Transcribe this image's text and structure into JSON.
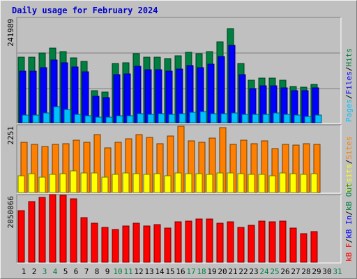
{
  "title": "Daily usage for February 2024",
  "colors": {
    "background": "#c0c0c0",
    "pages": "#00c0ff",
    "files": "#0000ff",
    "hits": "#008040",
    "visits": "#ffff00",
    "sites": "#ff8000",
    "kbytes": "#ff0000",
    "kb_in": "#0000ff",
    "kb_out": "#008040",
    "weekday_tick": "#000000",
    "weekend_tick": "#008040"
  },
  "chart_data": [
    {
      "type": "bar",
      "panel": "hits-files-pages",
      "max_label": "241989",
      "legend": [
        {
          "text": "Pages",
          "color": "#00c0ff"
        },
        {
          "text": "Files",
          "color": "#0000ff"
        },
        {
          "text": "Hits",
          "color": "#008040"
        }
      ],
      "ylim": [
        0,
        241989
      ],
      "categories": [
        "1",
        "2",
        "3",
        "4",
        "5",
        "6",
        "7",
        "8",
        "9",
        "10",
        "11",
        "12",
        "13",
        "14",
        "15",
        "16",
        "17",
        "18",
        "19",
        "20",
        "21",
        "22",
        "23",
        "24",
        "25",
        "26",
        "27",
        "28",
        "29",
        "30",
        "31"
      ],
      "series": [
        {
          "name": "Hits",
          "color": "#008040",
          "values": [
            152000,
            152000,
            161000,
            172000,
            165000,
            150000,
            142000,
            75000,
            71000,
            137000,
            138000,
            160000,
            151000,
            151000,
            148000,
            155000,
            163000,
            160000,
            165000,
            187000,
            218000,
            137000,
            98000,
            104000,
            104000,
            98000,
            84000,
            82000,
            88000,
            null,
            null
          ]
        },
        {
          "name": "Files",
          "color": "#0000ff",
          "values": [
            119000,
            119000,
            127000,
            145000,
            138000,
            129000,
            118000,
            62000,
            58000,
            112000,
            113000,
            131000,
            123000,
            123000,
            120000,
            124000,
            132000,
            128000,
            136000,
            154000,
            179000,
            112000,
            79000,
            85000,
            85000,
            80000,
            75000,
            74000,
            81000,
            null,
            null
          ]
        },
        {
          "name": "Pages",
          "color": "#00c0ff",
          "values": [
            18000,
            18000,
            22000,
            37000,
            30000,
            20000,
            16000,
            13000,
            13000,
            16000,
            16000,
            21000,
            20000,
            21000,
            19000,
            21000,
            25000,
            26000,
            21000,
            21000,
            22000,
            20000,
            19000,
            20000,
            22000,
            19000,
            17000,
            15000,
            17000,
            null,
            null
          ]
        }
      ]
    },
    {
      "type": "bar",
      "panel": "visits-sites",
      "max_label": "2251",
      "legend": [
        {
          "text": "Visits",
          "color": "#ffff00"
        },
        {
          "text": "Sites",
          "color": "#ff8000"
        }
      ],
      "ylim": [
        0,
        2251
      ],
      "categories": [
        "1",
        "2",
        "3",
        "4",
        "5",
        "6",
        "7",
        "8",
        "9",
        "10",
        "11",
        "12",
        "13",
        "14",
        "15",
        "16",
        "17",
        "18",
        "19",
        "20",
        "21",
        "22",
        "23",
        "24",
        "25",
        "26",
        "27",
        "28",
        "29",
        "30",
        "31"
      ],
      "series": [
        {
          "name": "Sites",
          "color": "#ff8000",
          "values": [
            1688,
            1618,
            1547,
            1618,
            1653,
            1759,
            1688,
            1935,
            1512,
            1688,
            1794,
            1935,
            1864,
            1653,
            1900,
            2216,
            1724,
            1688,
            1829,
            2181,
            1618,
            1759,
            1653,
            1724,
            1477,
            1618,
            1583,
            1653,
            1618,
            null,
            null
          ]
        },
        {
          "name": "Visits",
          "color": "#ffff00",
          "values": [
            562,
            633,
            527,
            598,
            633,
            738,
            668,
            668,
            527,
            598,
            668,
            633,
            598,
            633,
            562,
            668,
            633,
            633,
            598,
            668,
            668,
            633,
            598,
            598,
            562,
            668,
            633,
            598,
            633,
            null,
            null
          ]
        }
      ]
    },
    {
      "type": "bar",
      "panel": "kbytes",
      "max_label": "2050066",
      "legend": [
        {
          "text": "kB F",
          "color": "#ff0000"
        },
        {
          "text": "kB In",
          "color": "#0000ff"
        },
        {
          "text": "kB Out",
          "color": "#008040"
        }
      ],
      "ylim": [
        0,
        2050066
      ],
      "categories": [
        "1",
        "2",
        "3",
        "4",
        "5",
        "6",
        "7",
        "8",
        "9",
        "10",
        "11",
        "12",
        "13",
        "14",
        "15",
        "16",
        "17",
        "18",
        "19",
        "20",
        "21",
        "22",
        "23",
        "24",
        "25",
        "26",
        "27",
        "28",
        "29",
        "30",
        "31"
      ],
      "series": [
        {
          "name": "kB F",
          "color": "#ff0000",
          "values": [
            1576000,
            1856000,
            1995000,
            2065000,
            2042000,
            1949000,
            1368000,
            1206000,
            1067000,
            997000,
            1113000,
            1206000,
            1113000,
            1160000,
            1044000,
            1229000,
            1252000,
            1322000,
            1322000,
            1206000,
            1229000,
            1067000,
            1136000,
            1252000,
            1229000,
            1252000,
            1044000,
            881000,
            950000,
            null,
            null
          ]
        }
      ]
    }
  ],
  "x_axis": {
    "ticks": [
      {
        "label": "1",
        "weekend": false
      },
      {
        "label": "2",
        "weekend": false
      },
      {
        "label": "3",
        "weekend": true
      },
      {
        "label": "4",
        "weekend": true
      },
      {
        "label": "5",
        "weekend": false
      },
      {
        "label": "6",
        "weekend": false
      },
      {
        "label": "7",
        "weekend": false
      },
      {
        "label": "8",
        "weekend": false
      },
      {
        "label": "9",
        "weekend": false
      },
      {
        "label": "10",
        "weekend": true
      },
      {
        "label": "11",
        "weekend": true
      },
      {
        "label": "12",
        "weekend": false
      },
      {
        "label": "13",
        "weekend": false
      },
      {
        "label": "14",
        "weekend": false
      },
      {
        "label": "15",
        "weekend": false
      },
      {
        "label": "16",
        "weekend": false
      },
      {
        "label": "17",
        "weekend": true
      },
      {
        "label": "18",
        "weekend": true
      },
      {
        "label": "19",
        "weekend": false
      },
      {
        "label": "20",
        "weekend": false
      },
      {
        "label": "21",
        "weekend": false
      },
      {
        "label": "22",
        "weekend": false
      },
      {
        "label": "23",
        "weekend": false
      },
      {
        "label": "24",
        "weekend": true
      },
      {
        "label": "25",
        "weekend": true
      },
      {
        "label": "26",
        "weekend": false
      },
      {
        "label": "27",
        "weekend": false
      },
      {
        "label": "28",
        "weekend": false
      },
      {
        "label": "29",
        "weekend": false
      },
      {
        "label": "30",
        "weekend": false
      },
      {
        "label": "31",
        "weekend": true
      }
    ]
  }
}
